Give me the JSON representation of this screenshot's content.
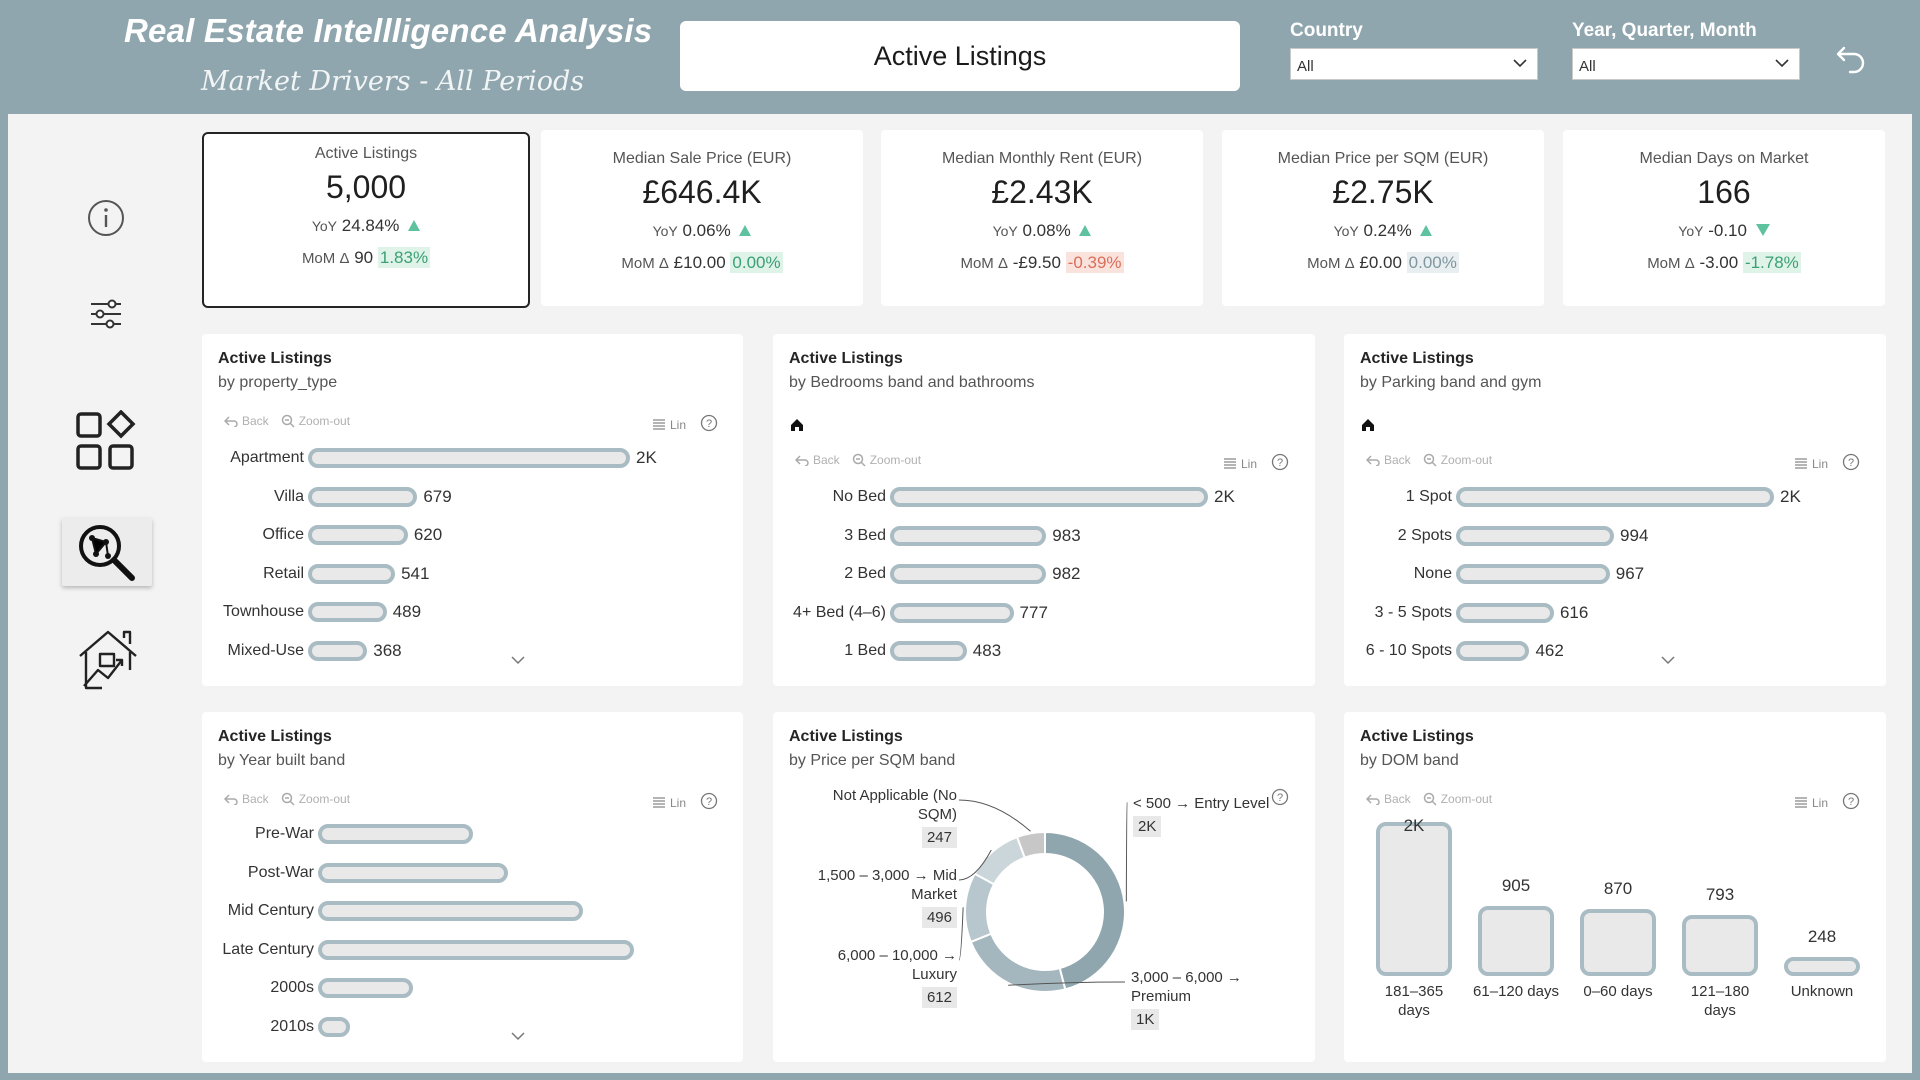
{
  "header": {
    "title": "Real Estate Intellligence Analysis",
    "subtitle": "Market Drivers - All Periods",
    "page_name": "Active Listings",
    "country_label": "Country",
    "country_value": "All",
    "period_label": "Year, Quarter, Month",
    "period_value": "All"
  },
  "nav": [
    "info-icon",
    "filter-sliders-icon",
    "apps-grid-icon",
    "network-search-icon",
    "house-chart-icon"
  ],
  "kpis": [
    {
      "label": "Active Listings",
      "value": "5,000",
      "yoy_prefix": "YoY",
      "yoy": "24.84%",
      "yoy_dir": "up",
      "mom_prefix": "MoM Δ",
      "mom": "90",
      "mom_pct": "1.83%",
      "mom_tone": "green"
    },
    {
      "label": "Median Sale Price (EUR)",
      "value": "£646.4K",
      "yoy_prefix": "YoY",
      "yoy": "0.06%",
      "yoy_dir": "up",
      "mom_prefix": "MoM Δ",
      "mom": "£10.00",
      "mom_pct": "0.00%",
      "mom_tone": "green"
    },
    {
      "label": "Median Monthly Rent (EUR)",
      "value": "£2.43K",
      "yoy_prefix": "YoY",
      "yoy": "0.08%",
      "yoy_dir": "up",
      "mom_prefix": "MoM Δ",
      "mom": "-£9.50",
      "mom_pct": "-0.39%",
      "mom_tone": "red"
    },
    {
      "label": "Median Price per SQM (EUR)",
      "value": "£2.75K",
      "yoy_prefix": "YoY",
      "yoy": "0.24%",
      "yoy_dir": "up",
      "mom_prefix": "MoM Δ",
      "mom": "£0.00",
      "mom_pct": "0.00%",
      "mom_tone": "grey"
    },
    {
      "label": "Median Days on Market",
      "value": "166",
      "yoy_prefix": "YoY",
      "yoy": "-0.10",
      "yoy_dir": "down",
      "mom_prefix": "MoM Δ",
      "mom": "-3.00",
      "mom_pct": "-1.78%",
      "mom_tone": "green"
    }
  ],
  "toolbar": {
    "back": "Back",
    "zoom": "Zoom-out",
    "lin": "Lin"
  },
  "accent": "#a9bcc3",
  "chart_data": [
    {
      "type": "bar",
      "title": "Active Listings",
      "subtitle": "by property_type",
      "categories": [
        "Apartment",
        "Villa",
        "Office",
        "Retail",
        "Townhouse",
        "Mixed-Use"
      ],
      "values": [
        2000,
        679,
        620,
        541,
        489,
        368
      ],
      "labels": [
        "2K",
        "679",
        "620",
        "541",
        "489",
        "368"
      ]
    },
    {
      "type": "bar",
      "title": "Active Listings",
      "subtitle": "by Bedrooms band and bathrooms",
      "categories": [
        "No Bed",
        "3 Bed",
        "2 Bed",
        "4+ Bed (4–6)",
        "1 Bed"
      ],
      "values": [
        2000,
        983,
        982,
        777,
        483
      ],
      "labels": [
        "2K",
        "983",
        "982",
        "777",
        "483"
      ]
    },
    {
      "type": "bar",
      "title": "Active Listings",
      "subtitle": "by Parking band and gym",
      "categories": [
        "1 Spot",
        "2 Spots",
        "None",
        "3 - 5 Spots",
        "6 - 10 Spots"
      ],
      "values": [
        2000,
        994,
        967,
        616,
        462
      ],
      "labels": [
        "2K",
        "994",
        "967",
        "616",
        "462"
      ]
    },
    {
      "type": "bar",
      "title": "Active Listings",
      "subtitle": "by Year built band",
      "categories": [
        "Pre-War",
        "Post-War",
        "Mid Century",
        "Late Century",
        "2000s",
        "2010s"
      ],
      "values": [
        490,
        600,
        840,
        1000,
        300,
        100
      ],
      "labels": [
        "",
        "",
        "",
        "",
        "",
        ""
      ]
    },
    {
      "type": "pie",
      "title": "Active Listings",
      "subtitle": "by Price per SQM band",
      "categories": [
        "< 500 → Entry Level",
        "3,000 – 6,000 → Premium",
        "6,000 – 10,000 → Luxury",
        "1,500 – 3,000 → Mid Market",
        "Not Applicable (No SQM)"
      ],
      "label_lines": [
        [
          "< 500 → Entry Level"
        ],
        [
          "3,000 – 6,000 →",
          "Premium"
        ],
        [
          "6,000 – 10,000 →",
          "Luxury"
        ],
        [
          "1,500 – 3,000 → Mid",
          "Market"
        ],
        [
          "Not Applicable (No",
          "SQM)"
        ]
      ],
      "values": [
        2000,
        1000,
        612,
        496,
        247
      ],
      "labels": [
        "2K",
        "1K",
        "612",
        "496",
        "247"
      ]
    },
    {
      "type": "bar",
      "title": "Active Listings",
      "subtitle": "by DOM band",
      "categories": [
        "181–365 days",
        "61–120 days",
        "0–60 days",
        "121–180 days",
        "Unknown"
      ],
      "label_lines": [
        [
          "181–365",
          "days"
        ],
        [
          "61–120 days"
        ],
        [
          "0–60 days"
        ],
        [
          "121–180",
          "days"
        ],
        [
          "Unknown"
        ]
      ],
      "values": [
        2000,
        905,
        870,
        793,
        248
      ],
      "labels": [
        "2K",
        "905",
        "870",
        "793",
        "248"
      ]
    }
  ]
}
